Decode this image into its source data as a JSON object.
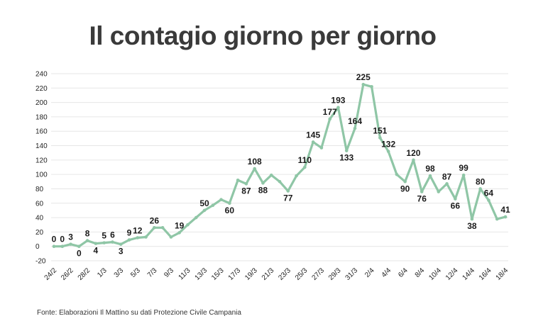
{
  "title": "Il contagio giorno per giorno",
  "source": "Fonte: Elaborazioni Il Mattino su dati Protezione Civile Campania",
  "chart_data": {
    "type": "line",
    "title": "Il contagio giorno per giorno",
    "xlabel": "",
    "ylabel": "",
    "ylim": [
      -20,
      240
    ],
    "yticks": [
      -20,
      0,
      20,
      40,
      60,
      80,
      100,
      120,
      140,
      160,
      180,
      200,
      220,
      240
    ],
    "grid": true,
    "line_color": "#8fc6a6",
    "marker_color": "#8fc6a6",
    "x_tick_labels": [
      "24/2",
      "26/2",
      "28/2",
      "1/3",
      "3/3",
      "5/3",
      "7/3",
      "9/3",
      "11/3",
      "13/3",
      "15/3",
      "17/3",
      "19/3",
      "21/3",
      "23/3",
      "25/3",
      "27/3",
      "29/3",
      "31/3",
      "2/4",
      "4/4",
      "6/4",
      "8/4",
      "10/4",
      "12/4",
      "14/4",
      "16/4",
      "18/4"
    ],
    "x": [
      "24/2",
      "25/2",
      "26/2",
      "27/2",
      "28/2",
      "29/2",
      "1/3",
      "2/3",
      "3/3",
      "4/3",
      "5/3",
      "6/3",
      "7/3",
      "8/3",
      "9/3",
      "10/3",
      "11/3",
      "12/3",
      "13/3",
      "14/3",
      "15/3",
      "16/3",
      "17/3",
      "18/3",
      "19/3",
      "20/3",
      "21/3",
      "22/3",
      "23/3",
      "24/3",
      "25/3",
      "26/3",
      "27/3",
      "28/3",
      "29/3",
      "30/3",
      "31/3",
      "1/4",
      "2/4",
      "3/4",
      "4/4",
      "5/4",
      "6/4",
      "7/4",
      "8/4",
      "9/4",
      "10/4",
      "11/4",
      "12/4",
      "13/4",
      "14/4",
      "15/4",
      "16/4",
      "17/4",
      "18/4"
    ],
    "values": [
      0,
      0,
      3,
      0,
      8,
      4,
      5,
      6,
      3,
      9,
      12,
      13,
      26,
      26,
      13,
      19,
      30,
      40,
      50,
      57,
      65,
      60,
      92,
      87,
      108,
      88,
      99,
      90,
      77,
      98,
      110,
      145,
      137,
      177,
      193,
      133,
      164,
      225,
      222,
      151,
      132,
      100,
      90,
      120,
      76,
      98,
      76,
      87,
      66,
      99,
      38,
      80,
      64,
      38,
      41
    ],
    "data_labels": [
      {
        "index": 0,
        "text": "0"
      },
      {
        "index": 1,
        "text": "0"
      },
      {
        "index": 2,
        "text": "3"
      },
      {
        "index": 3,
        "text": "0"
      },
      {
        "index": 4,
        "text": "8"
      },
      {
        "index": 5,
        "text": "4"
      },
      {
        "index": 6,
        "text": "5"
      },
      {
        "index": 7,
        "text": "6"
      },
      {
        "index": 8,
        "text": "3"
      },
      {
        "index": 9,
        "text": "9"
      },
      {
        "index": 10,
        "text": "12"
      },
      {
        "index": 12,
        "text": "26"
      },
      {
        "index": 15,
        "text": "19"
      },
      {
        "index": 18,
        "text": "50"
      },
      {
        "index": 21,
        "text": "60"
      },
      {
        "index": 23,
        "text": "87"
      },
      {
        "index": 24,
        "text": "108"
      },
      {
        "index": 25,
        "text": "88"
      },
      {
        "index": 28,
        "text": "77"
      },
      {
        "index": 30,
        "text": "110"
      },
      {
        "index": 31,
        "text": "145"
      },
      {
        "index": 33,
        "text": "177"
      },
      {
        "index": 34,
        "text": "193"
      },
      {
        "index": 35,
        "text": "133"
      },
      {
        "index": 36,
        "text": "164"
      },
      {
        "index": 37,
        "text": "225"
      },
      {
        "index": 39,
        "text": "151"
      },
      {
        "index": 40,
        "text": "132"
      },
      {
        "index": 42,
        "text": "90"
      },
      {
        "index": 43,
        "text": "120"
      },
      {
        "index": 44,
        "text": "76"
      },
      {
        "index": 45,
        "text": "98"
      },
      {
        "index": 47,
        "text": "87"
      },
      {
        "index": 48,
        "text": "66"
      },
      {
        "index": 49,
        "text": "99"
      },
      {
        "index": 50,
        "text": "38"
      },
      {
        "index": 51,
        "text": "80"
      },
      {
        "index": 52,
        "text": "64"
      },
      {
        "index": 54,
        "text": "41"
      }
    ]
  }
}
